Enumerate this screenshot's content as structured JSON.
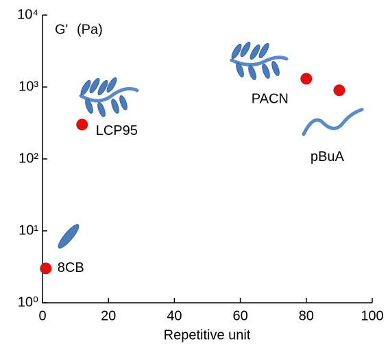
{
  "chart_data": {
    "type": "scatter",
    "ylabel": "G'",
    "ylabel_unit": "(Pa)",
    "ylabel_color": "#e00000",
    "xlabel": "Repetitive unit",
    "x": [
      1,
      12,
      80,
      90
    ],
    "values": [
      3,
      300,
      1300,
      900
    ],
    "labels": [
      "8CB",
      "LCP95",
      "PACN",
      "pBuA"
    ],
    "color": "#e01010",
    "log_y": true,
    "xlim": [
      0,
      100
    ],
    "xticks": [
      0,
      20,
      40,
      60,
      80,
      100
    ],
    "ylim": [
      1,
      10000
    ],
    "yticks": [
      {
        "value": 1,
        "label": "10⁰"
      },
      {
        "value": 10,
        "label": "10¹"
      },
      {
        "value": 100,
        "label": "10²"
      },
      {
        "value": 1000,
        "label": "10³"
      },
      {
        "value": 10000,
        "label": "10⁴"
      }
    ]
  }
}
